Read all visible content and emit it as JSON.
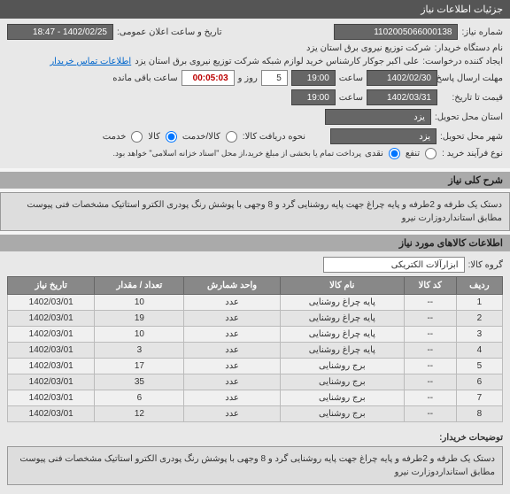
{
  "header": {
    "title": "جزئیات اطلاعات نیاز"
  },
  "form": {
    "need_number_label": "شماره نیاز:",
    "need_number": "1102005066000138",
    "announce_label": "تاریخ و ساعت اعلان عمومی:",
    "announce_value": "1402/02/25 - 18:47",
    "buyer_name_label": "نام دستگاه خریدار:",
    "buyer_name": "شرکت توزیع نیروی برق استان یزد",
    "requester_label": "ایجاد کننده درخواست:",
    "requester": "علی اکبر جوکار کارشناس خرید لوازم شبکه  شرکت توزیع نیروی برق استان یزد",
    "contact_link": "اطلاعات تماس خریدار",
    "deadline_label": "حداقل تاریخ",
    "deadline_sub": "مهلت ارسال پاسخ:",
    "deadline_date": "1402/02/30",
    "time_label": "ساعت",
    "deadline_time": "19:00",
    "days_label": "روز و",
    "days": "5",
    "remain_label": "ساعت باقی مانده",
    "remain": "00:05:03",
    "validity_label": "حداقل تاریخ اعتبار",
    "validity_sub": "قیمت تا تاریخ:",
    "validity_date": "1402/03/31",
    "validity_time": "19:00",
    "province_label": "استان محل تحویل:",
    "province": "یزد",
    "city_label": "شهر محل تحویل:",
    "city": "یزد",
    "delivery_label": "نحوه دریافت کالا:",
    "delivery_options": [
      "کالا/خدمت",
      "کالا",
      "خدمت"
    ],
    "payment_label": "نوع فرآیند خرید :",
    "payment_options": [
      "تنفع",
      "نقدی"
    ],
    "payment_note": "پرداخت تمام یا بخشی از مبلغ خرید،از محل \"اسناد خزانه اسلامی\" خواهد بود."
  },
  "need_section": {
    "title": "شرح کلی نیاز",
    "desc": "دستک یک طرفه و 2طرفه  و  پایه چراغ جهت پایه روشنایی گرد و 8 وجهی با پوشش رنگ پودری الکترو استاتیک   مشخصات فنی پیوست مطابق استانداردوزارت نیرو"
  },
  "goods_section": {
    "title": "اطلاعات کالاهای مورد نیاز",
    "group_label": "گروه کالا:",
    "group": "ابزارآلات الکتریکی"
  },
  "table": {
    "headers": [
      "ردیف",
      "کد کالا",
      "نام کالا",
      "واحد شمارش",
      "تعداد / مقدار",
      "تاریخ نیاز"
    ],
    "rows": [
      [
        "1",
        "--",
        "پایه چراغ روشنایی",
        "عدد",
        "10",
        "1402/03/01"
      ],
      [
        "2",
        "--",
        "پایه چراغ روشنایی",
        "عدد",
        "19",
        "1402/03/01"
      ],
      [
        "3",
        "--",
        "پایه چراغ روشنایی",
        "عدد",
        "10",
        "1402/03/01"
      ],
      [
        "4",
        "--",
        "پایه چراغ روشنایی",
        "عدد",
        "3",
        "1402/03/01"
      ],
      [
        "5",
        "--",
        "برج روشنایی",
        "عدد",
        "17",
        "1402/03/01"
      ],
      [
        "6",
        "--",
        "برج روشنایی",
        "عدد",
        "35",
        "1402/03/01"
      ],
      [
        "7",
        "--",
        "برج روشنایی",
        "عدد",
        "6",
        "1402/03/01"
      ],
      [
        "8",
        "--",
        "برج روشنایی",
        "عدد",
        "12",
        "1402/03/01"
      ]
    ]
  },
  "footer": {
    "label": "توضیحات خریدار:",
    "desc": "دستک یک طرفه و 2طرفه  و  پایه چراغ جهت پایه روشنایی گرد و 8 وجهی با پوشش رنگ پودری الکترو استاتیک   مشخصات فنی پیوست مطابق استانداردوزارت نیرو"
  }
}
